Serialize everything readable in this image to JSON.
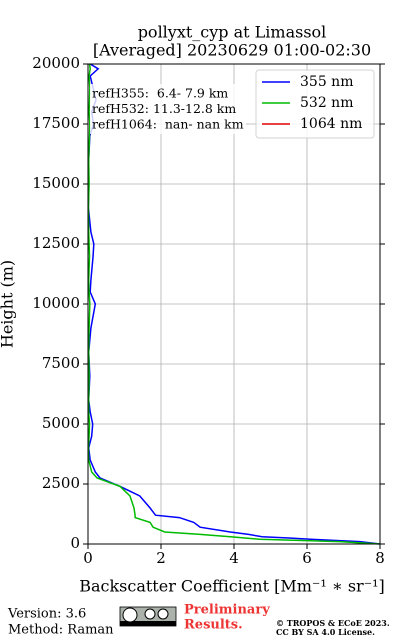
{
  "chart_data": {
    "type": "line",
    "title": "pollyxt_cyp at Limassol",
    "subtitle": "[Averaged] 20230629 01:00-02:30",
    "x_label": "Backscatter Coefficient [Mm⁻¹ ∗ sr⁻¹]",
    "y_label": "Height (m)",
    "annotations": [
      "refH355:  6.4- 7.9 km",
      "refH532: 11.3-12.8 km",
      "refH1064:  nan- nan km"
    ],
    "y": [
      0,
      100,
      200,
      250,
      300,
      400,
      500,
      700,
      900,
      1100,
      1200,
      1500,
      2000,
      2400,
      2750,
      3000,
      3500,
      4000,
      4500,
      5000,
      5500,
      6000,
      7000,
      8000,
      9000,
      10000,
      10500,
      11000,
      12000,
      12500,
      13000,
      14000,
      15000,
      16000,
      17000,
      17500,
      18000,
      18500,
      19000,
      19500,
      19800,
      20000
    ],
    "series": [
      {
        "name": "355 nm",
        "color": "#0000ff",
        "values": [
          8,
          7.45,
          6.1,
          5.5,
          4.77,
          4.4,
          3.9,
          3.07,
          2.9,
          2.5,
          1.85,
          1.7,
          1.42,
          0.88,
          0.33,
          0.2,
          0.06,
          0.02,
          0.1,
          0.13,
          0.06,
          0.02,
          0.05,
          0.02,
          0.08,
          0.2,
          0.06,
          0.08,
          0.14,
          0.16,
          0.08,
          0.01,
          0.02,
          0.02,
          0.05,
          0.15,
          0.1,
          0.22,
          0.14,
          0.06,
          0.28,
          0.06
        ]
      },
      {
        "name": "532 nm",
        "color": "#00bb00",
        "values": [
          8,
          6.9,
          4.7,
          4.3,
          3.9,
          3.07,
          2.1,
          1.78,
          1.7,
          1.29,
          1.29,
          1.26,
          1.15,
          0.88,
          0.25,
          0.1,
          0.02,
          0.01,
          0.03,
          0.04,
          0.02,
          0.02,
          0.03,
          0.02,
          0.03,
          0.05,
          0.03,
          0.02,
          0.04,
          0.03,
          0.02,
          0.01,
          0.03,
          0.02,
          0.04,
          0.05,
          0.03,
          0.04,
          0.05,
          0.03,
          0.06,
          0.04
        ]
      },
      {
        "name": "1064 nm",
        "color": "#dd0000",
        "values": [
          null,
          null,
          null,
          null,
          null,
          null,
          null,
          null,
          null,
          null,
          null,
          null,
          null,
          null,
          null,
          null,
          null,
          null,
          null,
          null,
          null,
          null,
          null,
          null,
          null,
          null,
          null,
          null,
          null,
          null,
          null,
          null,
          null,
          null,
          null,
          null,
          null,
          null,
          null,
          null,
          null,
          null
        ]
      }
    ],
    "xlim": [
      0,
      8
    ],
    "xticks": [
      0,
      2,
      4,
      6,
      8
    ],
    "ylim": [
      0,
      20000
    ],
    "yticks": [
      0,
      2500,
      5000,
      7500,
      10000,
      12500,
      15000,
      17500,
      20000
    ],
    "grid": true,
    "legend": "upper right"
  },
  "footer": {
    "version": "Version: 3.6",
    "method": "Method: Raman",
    "preliminary": "Preliminary",
    "results": "Results.",
    "copyright": "© TROPOS & ECoE 2023.",
    "license": "CC BY SA 4.0 License."
  }
}
